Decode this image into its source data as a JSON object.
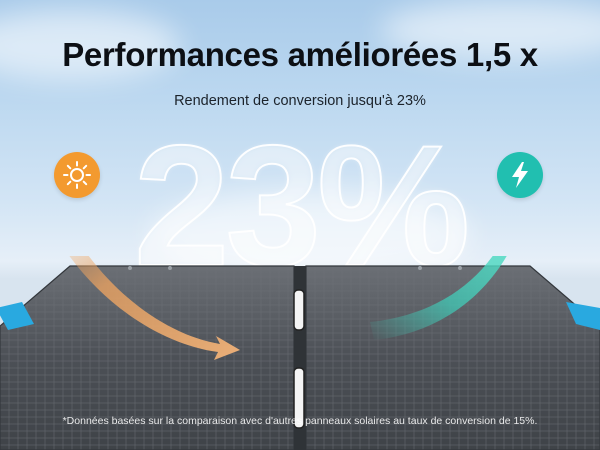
{
  "headline": "Performances améliorées 1,5 x",
  "subtitle": "Rendement de conversion jusqu'à 23%",
  "big_figure": "23%",
  "footnote": "*Données basées sur la comparaison avec d'autres panneaux solaires au taux de conversion de 15%.",
  "icons": {
    "left": "sun-icon",
    "right": "lightning-bolt-icon"
  },
  "colors": {
    "sun_badge": "#f39a2f",
    "bolt_badge": "#21bfb0",
    "incoming_arrow": "#f1a560",
    "outgoing_arrow": "#3fd1bc",
    "panel": "#4a4e54",
    "panel_clip": "#29a9e0"
  }
}
